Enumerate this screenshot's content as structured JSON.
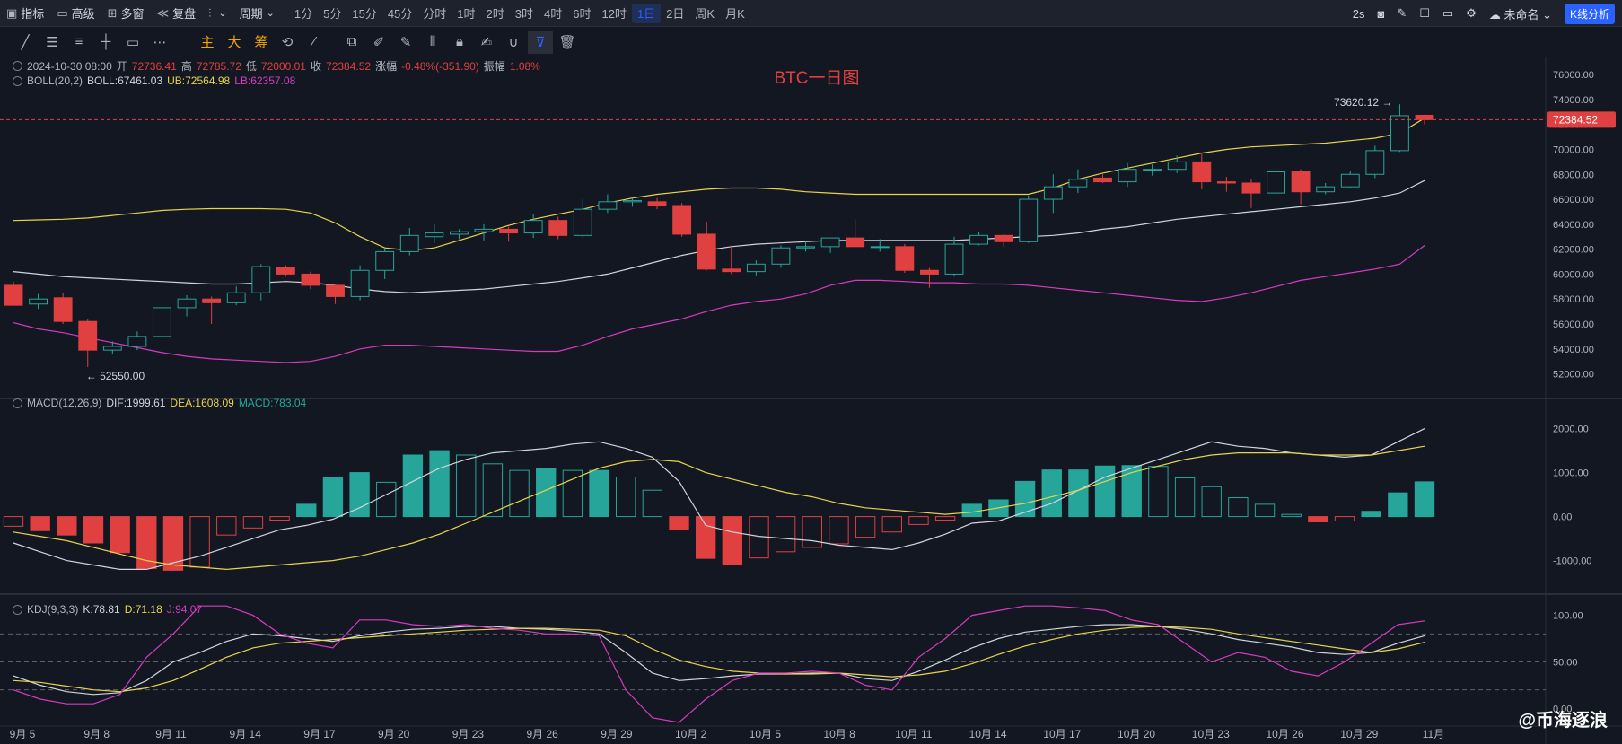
{
  "topbar": {
    "items": [
      {
        "icon": "indicator-icon",
        "label": "指标"
      },
      {
        "icon": "template-icon",
        "label": "高级"
      },
      {
        "icon": "multi-window-icon",
        "label": "多窗"
      },
      {
        "icon": "replay-icon",
        "label": "复盘"
      },
      {
        "icon": "chart-type-icon",
        "label": ""
      },
      {
        "icon": "period-icon",
        "label": "周期"
      }
    ],
    "intervals": [
      "1分",
      "5分",
      "15分",
      "45分",
      "分时",
      "1时",
      "2时",
      "3时",
      "4时",
      "6时",
      "12时",
      "1日",
      "2日",
      "周K",
      "月K"
    ],
    "active_interval": "1日",
    "right": {
      "refresh": "2s",
      "layout_name": "未命名",
      "kline_button": "K线分析"
    }
  },
  "drawing_tools": {
    "cn_labels": [
      "主",
      "大",
      "筹"
    ]
  },
  "ohlc_legend": {
    "date": "2024-10-30 08:00",
    "open_label": "开",
    "open": "72736.41",
    "high_label": "高",
    "high": "72785.72",
    "low_label": "低",
    "low": "72000.01",
    "close_label": "收",
    "close": "72384.52",
    "change_label": "涨幅",
    "change": "-0.48%(-351.90)",
    "amplitude_label": "振幅",
    "amplitude": "1.08%"
  },
  "boll_legend": {
    "name": "BOLL(20,2)",
    "mid": "BOLL:67461.03",
    "ub": "UB:72564.98",
    "lb": "LB:62357.08"
  },
  "macd_legend": {
    "name": "MACD(12,26,9)",
    "dif": "DIF:1999.61",
    "dea": "DEA:1608.09",
    "macd": "MACD:783.04"
  },
  "kdj_legend": {
    "name": "KDJ(9,3,3)",
    "k": "K:78.81",
    "d": "D:71.18",
    "j": "J:94.07"
  },
  "chart_title": "BTC一日图",
  "watermark": "@币海逐浪",
  "colors": {
    "up": "#26a69a",
    "down": "#e04040",
    "boll_up": "#e8d44d",
    "boll_mid": "#d1d4dc",
    "boll_lb": "#d63bbf",
    "dif": "#d1d4dc",
    "dea": "#e8d44d",
    "k": "#d1d4dc",
    "d": "#e8d44d",
    "j": "#d63bbf"
  },
  "chart_data": {
    "type": "candlestick",
    "x_tick_labels": [
      "9月 5",
      "9月 8",
      "9月 11",
      "9月 14",
      "9月 17",
      "9月 20",
      "9月 23",
      "9月 26",
      "9月 29",
      "10月 2",
      "10月 5",
      "10月 8",
      "10月 11",
      "10月 14",
      "10月 17",
      "10月 20",
      "10月 23",
      "10月 26",
      "10月 29",
      "11月"
    ],
    "price_axis": {
      "ticks": [
        52000,
        54000,
        56000,
        58000,
        60000,
        62000,
        64000,
        66000,
        68000,
        70000,
        72000,
        74000,
        76000
      ],
      "range": [
        50600,
        76800
      ],
      "last_price": "72384.52"
    },
    "annotations": {
      "high": "73620.12",
      "low": "52550.00"
    },
    "candles": [
      {
        "o": 59100,
        "h": 59400,
        "l": 57600,
        "c": 57500
      },
      {
        "o": 57600,
        "h": 58400,
        "l": 57200,
        "c": 58000
      },
      {
        "o": 58100,
        "h": 58500,
        "l": 56000,
        "c": 56200
      },
      {
        "o": 56200,
        "h": 56400,
        "l": 52550,
        "c": 53900
      },
      {
        "o": 53900,
        "h": 54600,
        "l": 53600,
        "c": 54200
      },
      {
        "o": 54200,
        "h": 55400,
        "l": 53900,
        "c": 55000
      },
      {
        "o": 55000,
        "h": 58000,
        "l": 54700,
        "c": 57300
      },
      {
        "o": 57300,
        "h": 58300,
        "l": 56600,
        "c": 58000
      },
      {
        "o": 58000,
        "h": 58200,
        "l": 56000,
        "c": 57700
      },
      {
        "o": 57700,
        "h": 59000,
        "l": 57500,
        "c": 58500
      },
      {
        "o": 58500,
        "h": 60800,
        "l": 57900,
        "c": 60600
      },
      {
        "o": 60500,
        "h": 60700,
        "l": 59800,
        "c": 60000
      },
      {
        "o": 60000,
        "h": 60200,
        "l": 58800,
        "c": 59100
      },
      {
        "o": 59100,
        "h": 59200,
        "l": 57600,
        "c": 58200
      },
      {
        "o": 58200,
        "h": 60700,
        "l": 57900,
        "c": 60300
      },
      {
        "o": 60300,
        "h": 62100,
        "l": 59600,
        "c": 61800
      },
      {
        "o": 61800,
        "h": 63700,
        "l": 61500,
        "c": 63100
      },
      {
        "o": 63000,
        "h": 64000,
        "l": 62500,
        "c": 63300
      },
      {
        "o": 63200,
        "h": 63600,
        "l": 62800,
        "c": 63400
      },
      {
        "o": 63400,
        "h": 64000,
        "l": 62700,
        "c": 63600
      },
      {
        "o": 63600,
        "h": 63800,
        "l": 62600,
        "c": 63300
      },
      {
        "o": 63300,
        "h": 64800,
        "l": 62900,
        "c": 64300
      },
      {
        "o": 64300,
        "h": 64600,
        "l": 62800,
        "c": 63100
      },
      {
        "o": 63100,
        "h": 66000,
        "l": 62900,
        "c": 65200
      },
      {
        "o": 65200,
        "h": 66400,
        "l": 64900,
        "c": 65800
      },
      {
        "o": 65800,
        "h": 66100,
        "l": 65400,
        "c": 65900
      },
      {
        "o": 65800,
        "h": 66100,
        "l": 65200,
        "c": 65500
      },
      {
        "o": 65500,
        "h": 65700,
        "l": 63000,
        "c": 63200
      },
      {
        "o": 63200,
        "h": 64200,
        "l": 60300,
        "c": 60400
      },
      {
        "o": 60400,
        "h": 62300,
        "l": 60000,
        "c": 60200
      },
      {
        "o": 60200,
        "h": 61100,
        "l": 59900,
        "c": 60800
      },
      {
        "o": 60800,
        "h": 62300,
        "l": 60500,
        "c": 62100
      },
      {
        "o": 62100,
        "h": 62600,
        "l": 61800,
        "c": 62200
      },
      {
        "o": 62200,
        "h": 62700,
        "l": 61700,
        "c": 62900
      },
      {
        "o": 62900,
        "h": 64400,
        "l": 62200,
        "c": 62200
      },
      {
        "o": 62200,
        "h": 62800,
        "l": 61800,
        "c": 62200
      },
      {
        "o": 62200,
        "h": 62400,
        "l": 60100,
        "c": 60300
      },
      {
        "o": 60300,
        "h": 60500,
        "l": 58900,
        "c": 60000
      },
      {
        "o": 60000,
        "h": 63000,
        "l": 59800,
        "c": 62400
      },
      {
        "o": 62400,
        "h": 63400,
        "l": 62300,
        "c": 63100
      },
      {
        "o": 63100,
        "h": 63200,
        "l": 62200,
        "c": 62600
      },
      {
        "o": 62600,
        "h": 66300,
        "l": 62500,
        "c": 66000
      },
      {
        "o": 66000,
        "h": 68000,
        "l": 64900,
        "c": 67000
      },
      {
        "o": 67000,
        "h": 68400,
        "l": 66500,
        "c": 67600
      },
      {
        "o": 67700,
        "h": 68000,
        "l": 67300,
        "c": 67400
      },
      {
        "o": 67400,
        "h": 68900,
        "l": 67000,
        "c": 68400
      },
      {
        "o": 68400,
        "h": 68800,
        "l": 67900,
        "c": 68400
      },
      {
        "o": 68400,
        "h": 69500,
        "l": 68100,
        "c": 69000
      },
      {
        "o": 69000,
        "h": 69600,
        "l": 66800,
        "c": 67400
      },
      {
        "o": 67400,
        "h": 67800,
        "l": 66600,
        "c": 67300
      },
      {
        "o": 67300,
        "h": 67600,
        "l": 65300,
        "c": 66500
      },
      {
        "o": 66500,
        "h": 68800,
        "l": 66100,
        "c": 68200
      },
      {
        "o": 68200,
        "h": 68400,
        "l": 65600,
        "c": 66600
      },
      {
        "o": 66600,
        "h": 67300,
        "l": 66400,
        "c": 67000
      },
      {
        "o": 67000,
        "h": 68300,
        "l": 66900,
        "c": 68000
      },
      {
        "o": 68000,
        "h": 70300,
        "l": 67700,
        "c": 69900
      },
      {
        "o": 69900,
        "h": 73620,
        "l": 69800,
        "c": 72700
      },
      {
        "o": 72736,
        "h": 72786,
        "l": 72000,
        "c": 72385
      }
    ],
    "boll_ub": [
      64300,
      64350,
      64400,
      64500,
      64700,
      64900,
      65100,
      65200,
      65250,
      65250,
      65250,
      65200,
      64900,
      64100,
      63000,
      62100,
      61900,
      62100,
      62700,
      63300,
      63900,
      64400,
      64800,
      65200,
      65700,
      66100,
      66400,
      66600,
      66800,
      66900,
      66900,
      66800,
      66600,
      66500,
      66400,
      66400,
      66400,
      66400,
      66400,
      66400,
      66400,
      66400,
      66900,
      67600,
      68100,
      68500,
      68900,
      69300,
      69700,
      70000,
      70200,
      70300,
      70400,
      70500,
      70700,
      70900,
      71300,
      72500
    ],
    "boll_mid": [
      60200,
      60000,
      59800,
      59700,
      59600,
      59500,
      59400,
      59300,
      59200,
      59200,
      59300,
      59400,
      59300,
      59100,
      58800,
      58600,
      58500,
      58600,
      58700,
      58800,
      59000,
      59200,
      59400,
      59700,
      60000,
      60500,
      61000,
      61500,
      61900,
      62200,
      62400,
      62500,
      62600,
      62700,
      62700,
      62700,
      62700,
      62700,
      62700,
      62800,
      62900,
      63000,
      63100,
      63300,
      63600,
      63800,
      64100,
      64400,
      64600,
      64800,
      65000,
      65200,
      65400,
      65600,
      65800,
      66100,
      66500,
      67500
    ],
    "boll_lb": [
      56100,
      55600,
      55300,
      54900,
      54500,
      54100,
      53700,
      53400,
      53200,
      53100,
      53000,
      52900,
      53000,
      53400,
      54000,
      54300,
      54300,
      54200,
      54100,
      54000,
      53900,
      53800,
      53800,
      54300,
      55000,
      55600,
      56000,
      56400,
      57000,
      57500,
      57800,
      58000,
      58400,
      59100,
      59500,
      59500,
      59400,
      59300,
      59300,
      59200,
      59200,
      59100,
      58900,
      58700,
      58500,
      58300,
      58100,
      57900,
      57800,
      58100,
      58500,
      59000,
      59500,
      59800,
      60100,
      60400,
      60800,
      62300
    ],
    "macd": {
      "ticks": [
        -1000,
        0,
        1000,
        2000
      ],
      "range": [
        -1600,
        2400
      ],
      "hist": [
        -220,
        -320,
        -420,
        -600,
        -820,
        -1180,
        -1220,
        -1150,
        -420,
        -260,
        -80,
        280,
        900,
        1000,
        780,
        1400,
        1500,
        1400,
        1200,
        1050,
        1100,
        1050,
        1050,
        900,
        600,
        -300,
        -950,
        -1100,
        -940,
        -800,
        -700,
        -620,
        -470,
        -350,
        -180,
        -80,
        280,
        380,
        800,
        1060,
        1060,
        1150,
        1160,
        1140,
        880,
        680,
        430,
        280,
        50,
        -120,
        -100,
        120,
        540,
        790
      ],
      "dif": [
        -600,
        -800,
        -1000,
        -1100,
        -1200,
        -1200,
        -1050,
        -900,
        -700,
        -500,
        -300,
        -200,
        -60,
        200,
        500,
        800,
        1100,
        1300,
        1450,
        1500,
        1550,
        1650,
        1700,
        1550,
        1350,
        800,
        -200,
        -350,
        -450,
        -500,
        -550,
        -650,
        -700,
        -750,
        -600,
        -400,
        -150,
        -100,
        100,
        300,
        600,
        900,
        1100,
        1300,
        1500,
        1700,
        1600,
        1550,
        1450,
        1400,
        1350,
        1400,
        1700,
        2000
      ],
      "dea": [
        -350,
        -450,
        -550,
        -700,
        -850,
        -1000,
        -1100,
        -1150,
        -1200,
        -1150,
        -1100,
        -1050,
        -1000,
        -900,
        -750,
        -600,
        -400,
        -150,
        100,
        350,
        600,
        850,
        1100,
        1250,
        1300,
        1250,
        1000,
        850,
        700,
        550,
        450,
        300,
        200,
        150,
        100,
        50,
        100,
        200,
        300,
        450,
        600,
        800,
        1000,
        1150,
        1300,
        1400,
        1450,
        1450,
        1450,
        1400,
        1400,
        1400,
        1500,
        1600
      ]
    },
    "kdj": {
      "ticks": [
        0,
        50,
        100
      ],
      "range": [
        -15,
        115
      ],
      "k": [
        35,
        25,
        18,
        15,
        17,
        30,
        50,
        60,
        72,
        80,
        78,
        75,
        72,
        78,
        82,
        85,
        86,
        88,
        88,
        86,
        85,
        83,
        80,
        60,
        38,
        30,
        32,
        35,
        37,
        37,
        38,
        38,
        32,
        30,
        40,
        52,
        65,
        75,
        82,
        85,
        88,
        90,
        90,
        88,
        85,
        80,
        74,
        70,
        66,
        60,
        58,
        60,
        70,
        78
      ],
      "d": [
        30,
        28,
        24,
        20,
        18,
        22,
        30,
        42,
        55,
        65,
        70,
        72,
        74,
        76,
        78,
        80,
        82,
        84,
        85,
        86,
        86,
        85,
        84,
        78,
        64,
        52,
        45,
        40,
        38,
        37,
        37,
        38,
        36,
        34,
        36,
        40,
        48,
        58,
        67,
        74,
        80,
        84,
        87,
        88,
        87,
        85,
        80,
        76,
        72,
        68,
        64,
        60,
        64,
        71
      ],
      "j": [
        20,
        10,
        5,
        5,
        15,
        55,
        80,
        110,
        110,
        100,
        80,
        70,
        65,
        95,
        95,
        90,
        88,
        90,
        86,
        84,
        80,
        80,
        78,
        20,
        -10,
        -15,
        10,
        30,
        38,
        38,
        40,
        38,
        25,
        20,
        55,
        75,
        100,
        105,
        110,
        110,
        108,
        105,
        95,
        90,
        70,
        50,
        60,
        55,
        40,
        35,
        50,
        70,
        90,
        94
      ]
    }
  }
}
